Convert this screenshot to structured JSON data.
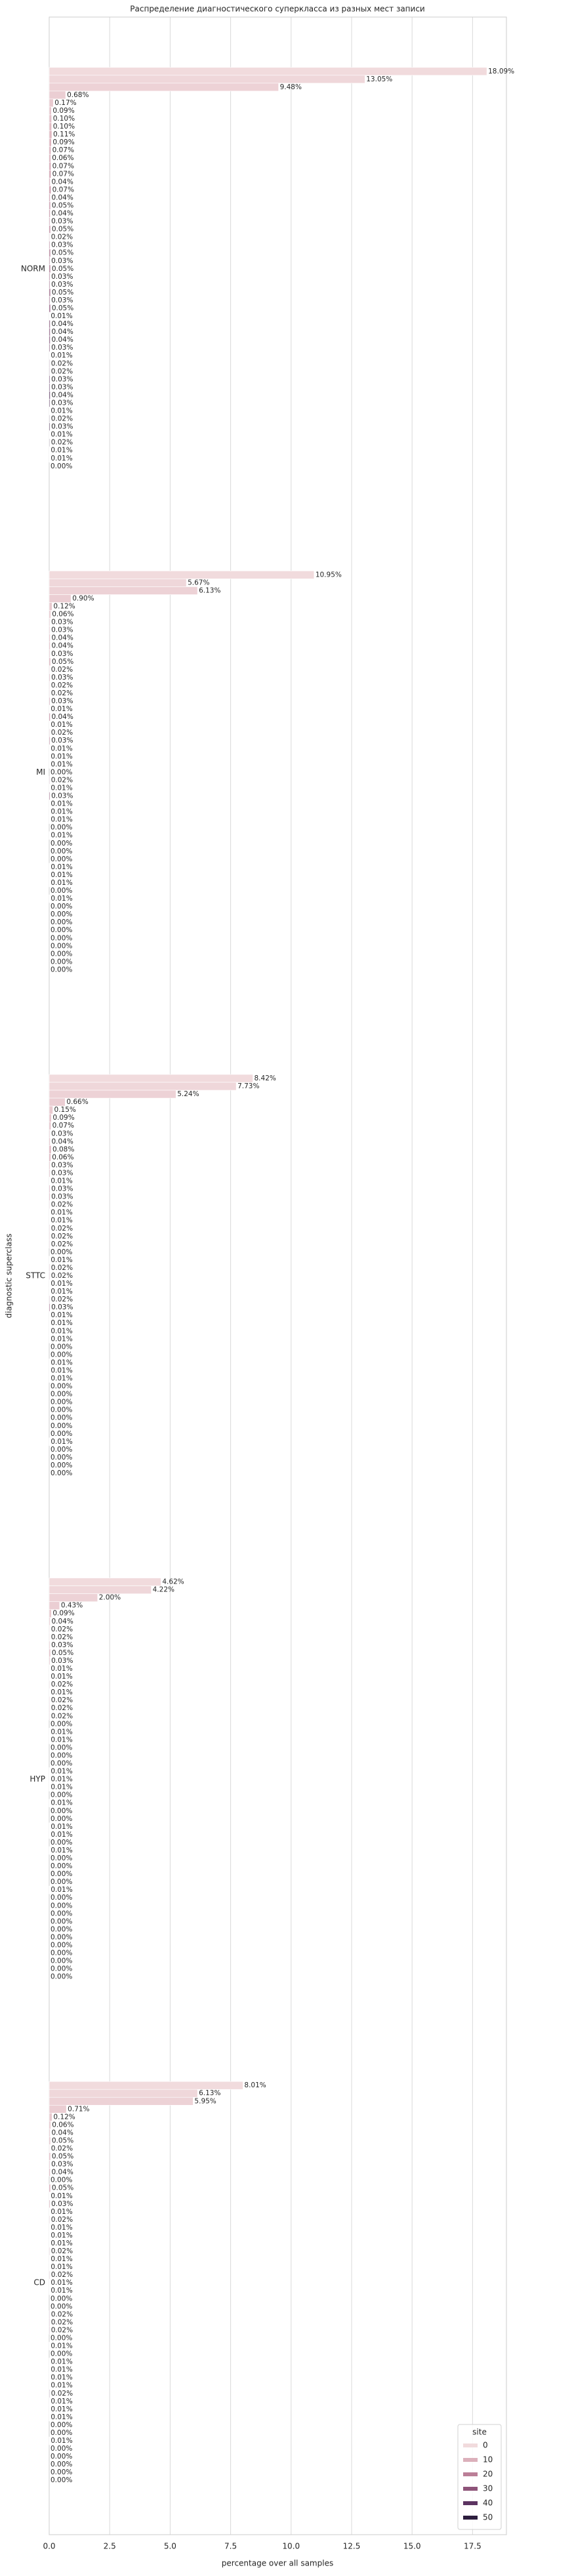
{
  "chart_data": {
    "type": "barh",
    "title": "Распределение диагностического суперкласса из разных мест записи",
    "xlabel": "percentage over all samples",
    "ylabel": "diagnostic superclass",
    "categories": [
      "NORM",
      "MI",
      "STTC",
      "HYP",
      "CD"
    ],
    "values": [
      [
        18.09,
        13.05,
        9.48,
        0.68,
        0.17,
        0.09,
        0.1,
        0.1,
        0.11,
        0.09,
        0.07,
        0.06,
        0.07,
        0.07,
        0.04,
        0.07,
        0.04,
        0.05,
        0.04,
        0.03,
        0.05,
        0.02,
        0.03,
        0.05,
        0.03,
        0.05,
        0.03,
        0.03,
        0.05,
        0.03,
        0.05,
        0.01,
        0.04,
        0.04,
        0.04,
        0.03,
        0.01,
        0.02,
        0.02,
        0.03,
        0.03,
        0.04,
        0.03,
        0.01,
        0.02,
        0.03,
        0.01,
        0.02,
        0.01,
        0.01,
        0
      ],
      [
        10.95,
        5.67,
        6.13,
        0.9,
        0.12,
        0.06,
        0.03,
        0.03,
        0.04,
        0.04,
        0.03,
        0.05,
        0.02,
        0.03,
        0.02,
        0.02,
        0.03,
        0.01,
        0.04,
        0.01,
        0.02,
        0.03,
        0.01,
        0.01,
        0.01,
        0,
        0.02,
        0.01,
        0.03,
        0.01,
        0.01,
        0.01,
        0,
        0.01,
        0,
        0,
        0,
        0.01,
        0.01,
        0.01,
        0,
        0.01,
        0,
        0,
        0,
        0,
        0,
        0,
        0,
        0,
        0
      ],
      [
        8.42,
        7.73,
        5.24,
        0.66,
        0.15,
        0.09,
        0.07,
        0.03,
        0.04,
        0.08,
        0.06,
        0.03,
        0.03,
        0.01,
        0.03,
        0.03,
        0.02,
        0.01,
        0.01,
        0.02,
        0.02,
        0.02,
        0,
        0.01,
        0.02,
        0.02,
        0.01,
        0.01,
        0.02,
        0.03,
        0.01,
        0.01,
        0.01,
        0.01,
        0,
        0,
        0.01,
        0.01,
        0.01,
        0,
        0,
        0,
        0,
        0,
        0,
        0,
        0.01,
        0,
        0,
        0,
        0
      ],
      [
        4.62,
        4.22,
        2.0,
        0.43,
        0.09,
        0.04,
        0.02,
        0.02,
        0.03,
        0.05,
        0.03,
        0.01,
        0.01,
        0.02,
        0.01,
        0.02,
        0.02,
        0.02,
        0,
        0.01,
        0.01,
        0,
        0,
        0,
        0.01,
        0.01,
        0.01,
        0,
        0.01,
        0,
        0,
        0.01,
        0.01,
        0,
        0.01,
        0,
        0,
        0,
        0,
        0.01,
        0,
        0,
        0,
        0,
        0,
        0,
        0,
        0,
        0,
        0,
        0
      ],
      [
        8.01,
        6.13,
        5.95,
        0.71,
        0.12,
        0.06,
        0.04,
        0.05,
        0.02,
        0.05,
        0.03,
        0.04,
        0,
        0.05,
        0.01,
        0.03,
        0.01,
        0.02,
        0.01,
        0.01,
        0.01,
        0.02,
        0.01,
        0.01,
        0.02,
        0.01,
        0.01,
        0,
        0,
        0.02,
        0.02,
        0.02,
        0,
        0.01,
        0,
        0.01,
        0.01,
        0.01,
        0.01,
        0.02,
        0.01,
        0.01,
        0.01,
        0,
        0,
        0.01,
        0,
        0,
        0,
        0,
        0
      ]
    ],
    "value_labels": [
      [
        "18.09%",
        "13.05%",
        "9.48%",
        "0.68%",
        "0.17%",
        "0.09%",
        "0.10%",
        "0.10%",
        "0.11%",
        "0.09%",
        "0.07%",
        "0.06%",
        "0.07%",
        "0.07%",
        "0.04%",
        "0.07%",
        "0.04%",
        "0.05%",
        "0.04%",
        "0.03%",
        "0.05%",
        "0.02%",
        "0.03%",
        "0.05%",
        "0.03%",
        "0.05%",
        "0.03%",
        "0.03%",
        "0.05%",
        "0.03%",
        "0.05%",
        "0.01%",
        "0.04%",
        "0.04%",
        "0.04%",
        "0.03%",
        "0.01%",
        "0.02%",
        "0.02%",
        "0.03%",
        "0.03%",
        "0.04%",
        "0.03%",
        "0.01%",
        "0.02%",
        "0.03%",
        "0.01%",
        "0.02%",
        "0.01%",
        "0.01%",
        "0.00%"
      ],
      [
        "10.95%",
        "5.67%",
        "6.13%",
        "0.90%",
        "0.12%",
        "0.06%",
        "0.03%",
        "0.03%",
        "0.04%",
        "0.04%",
        "0.03%",
        "0.05%",
        "0.02%",
        "0.03%",
        "0.02%",
        "0.02%",
        "0.03%",
        "0.01%",
        "0.04%",
        "0.01%",
        "0.02%",
        "0.03%",
        "0.01%",
        "0.01%",
        "0.01%",
        "0.00%",
        "0.02%",
        "0.01%",
        "0.03%",
        "0.01%",
        "0.01%",
        "0.01%",
        "0.00%",
        "0.01%",
        "0.00%",
        "0.00%",
        "0.00%",
        "0.01%",
        "0.01%",
        "0.01%",
        "0.00%",
        "0.01%",
        "0.00%",
        "0.00%",
        "0.00%",
        "0.00%",
        "0.00%",
        "0.00%",
        "0.00%",
        "0.00%",
        "0.00%"
      ],
      [
        "8.42%",
        "7.73%",
        "5.24%",
        "0.66%",
        "0.15%",
        "0.09%",
        "0.07%",
        "0.03%",
        "0.04%",
        "0.08%",
        "0.06%",
        "0.03%",
        "0.03%",
        "0.01%",
        "0.03%",
        "0.03%",
        "0.02%",
        "0.01%",
        "0.01%",
        "0.02%",
        "0.02%",
        "0.02%",
        "0.00%",
        "0.01%",
        "0.02%",
        "0.02%",
        "0.01%",
        "0.01%",
        "0.02%",
        "0.03%",
        "0.01%",
        "0.01%",
        "0.01%",
        "0.01%",
        "0.00%",
        "0.00%",
        "0.01%",
        "0.01%",
        "0.01%",
        "0.00%",
        "0.00%",
        "0.00%",
        "0.00%",
        "0.00%",
        "0.00%",
        "0.00%",
        "0.01%",
        "0.00%",
        "0.00%",
        "0.00%",
        "0.00%"
      ],
      [
        "4.62%",
        "4.22%",
        "2.00%",
        "0.43%",
        "0.09%",
        "0.04%",
        "0.02%",
        "0.02%",
        "0.03%",
        "0.05%",
        "0.03%",
        "0.01%",
        "0.01%",
        "0.02%",
        "0.01%",
        "0.02%",
        "0.02%",
        "0.02%",
        "0.00%",
        "0.01%",
        "0.01%",
        "0.00%",
        "0.00%",
        "0.00%",
        "0.01%",
        "0.01%",
        "0.01%",
        "0.00%",
        "0.01%",
        "0.00%",
        "0.00%",
        "0.01%",
        "0.01%",
        "0.00%",
        "0.01%",
        "0.00%",
        "0.00%",
        "0.00%",
        "0.00%",
        "0.01%",
        "0.00%",
        "0.00%",
        "0.00%",
        "0.00%",
        "0.00%",
        "0.00%",
        "0.00%",
        "0.00%",
        "0.00%",
        "0.00%",
        "0.00%"
      ],
      [
        "8.01%",
        "6.13%",
        "5.95%",
        "0.71%",
        "0.12%",
        "0.06%",
        "0.04%",
        "0.05%",
        "0.02%",
        "0.05%",
        "0.03%",
        "0.04%",
        "0.00%",
        "0.05%",
        "0.01%",
        "0.03%",
        "0.01%",
        "0.02%",
        "0.01%",
        "0.01%",
        "0.01%",
        "0.02%",
        "0.01%",
        "0.01%",
        "0.02%",
        "0.01%",
        "0.01%",
        "0.00%",
        "0.00%",
        "0.02%",
        "0.02%",
        "0.02%",
        "0.00%",
        "0.01%",
        "0.00%",
        "0.01%",
        "0.01%",
        "0.01%",
        "0.01%",
        "0.02%",
        "0.01%",
        "0.01%",
        "0.01%",
        "0.00%",
        "0.00%",
        "0.01%",
        "0.00%",
        "0.00%",
        "0.00%",
        "0.00%",
        "0.00%"
      ]
    ],
    "legend": {
      "title": "site",
      "corner": "lower right",
      "entries": [
        {
          "name": 0,
          "color": "#f1dbdd"
        },
        {
          "name": 10,
          "color": "#dcb0bb"
        },
        {
          "name": 20,
          "color": "#bb7f97"
        },
        {
          "name": 30,
          "color": "#8e5479"
        },
        {
          "name": 40,
          "color": "#5c3461"
        },
        {
          "name": 50,
          "color": "#2d1e3e"
        }
      ]
    },
    "xlim": [
      0,
      18.9
    ],
    "xticks": [
      {
        "value": 0,
        "label": "0.0"
      },
      2.5,
      {
        "value": 5,
        "label": "5.0"
      },
      7.5,
      {
        "value": 10,
        "label": "10.0"
      },
      12.5,
      {
        "value": 15,
        "label": "15.0"
      },
      17.5
    ],
    "grid": true
  }
}
